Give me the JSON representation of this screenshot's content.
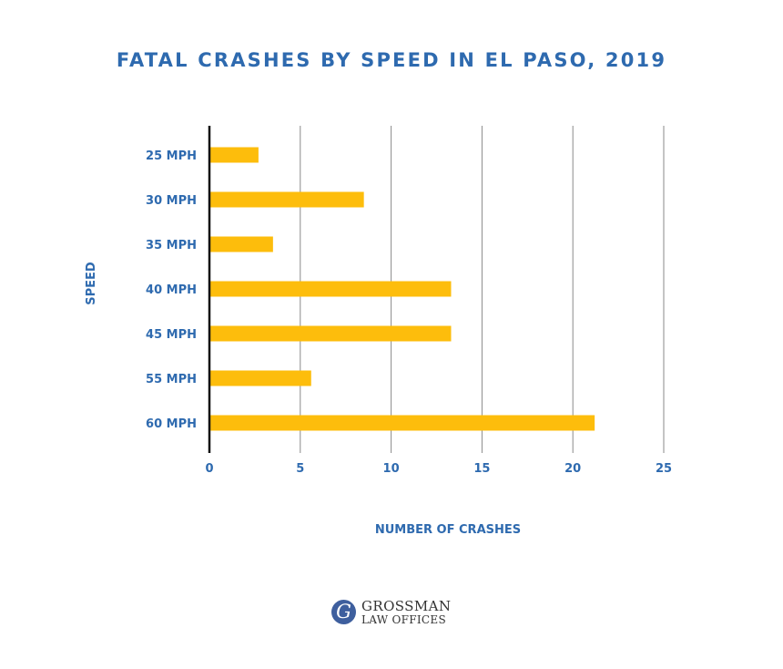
{
  "chart_data": {
    "type": "bar",
    "orientation": "horizontal",
    "title": "FATAL CRASHES BY SPEED IN EL PASO, 2019",
    "xlabel": "NUMBER OF CRASHES",
    "ylabel": "SPEED",
    "categories": [
      "25 MPH",
      "30 MPH",
      "35 MPH",
      "40 MPH",
      "45 MPH",
      "55 MPH",
      "60 MPH"
    ],
    "values": [
      2.7,
      8.5,
      3.5,
      13.3,
      13.3,
      5.6,
      21.2
    ],
    "xlim": [
      0,
      25
    ],
    "xticks": [
      "0",
      "5",
      "10",
      "15",
      "20",
      "25"
    ],
    "grid": "vertical",
    "bar_color": "#fdbd0c",
    "text_color": "#2e6aaf"
  },
  "logo": {
    "mark": "G",
    "name": "GROSSMAN",
    "sub": "LAW OFFICES",
    "color": "#3e5f9e"
  }
}
